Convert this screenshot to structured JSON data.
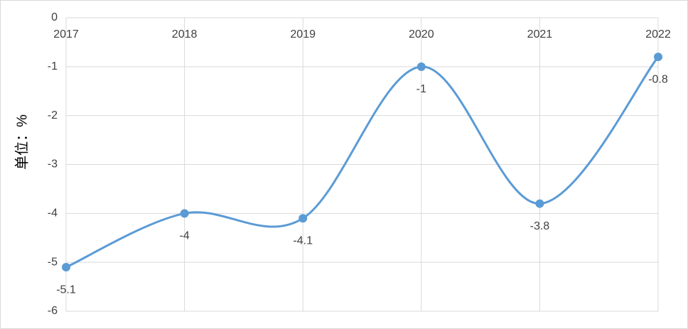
{
  "chart_data": {
    "type": "line",
    "y_label": "单位：%",
    "categories": [
      "2017",
      "2018",
      "2019",
      "2020",
      "2021",
      "2022"
    ],
    "series": [
      {
        "color": "#5b9bd5",
        "values": [
          -5.1,
          -4,
          -4.1,
          -1,
          -3.8,
          -0.8
        ]
      }
    ],
    "ylim": [
      -6,
      0
    ],
    "yticks": [
      0,
      -1,
      -2,
      -3,
      -4,
      -5,
      -6
    ],
    "grid": true,
    "smooth": true,
    "data_labels": true
  }
}
